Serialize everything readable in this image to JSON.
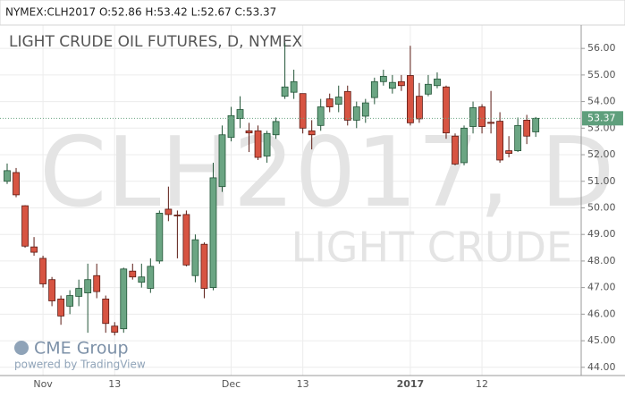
{
  "chart_data": {
    "type": "candlestick",
    "header": "NYMEX:CLH2017 O:52.86 H:53.42 L:52.67 C:53.37",
    "title": "LIGHT CRUDE OIL FUTURES, D, NYMEX",
    "watermark": "CLH2017, D",
    "watermark_subtitle": "LIGHT CRUDE",
    "logo": "CME Group",
    "logo_caption": "powered by TradingView",
    "up_color": "#6ba583",
    "down_color": "#d75442",
    "up_border": "#225437",
    "down_border": "#5b1a13",
    "last_price": 53.37,
    "categories": [
      null,
      null,
      null,
      null,
      "Nov",
      null,
      null,
      null,
      null,
      null,
      null,
      null,
      "13",
      null,
      null,
      null,
      null,
      null,
      null,
      null,
      null,
      null,
      null,
      null,
      null,
      "Dec",
      null,
      null,
      null,
      null,
      null,
      null,
      null,
      "13",
      null,
      null,
      null,
      null,
      null,
      null,
      null,
      null,
      null,
      null,
      null,
      "2017",
      null,
      null,
      null,
      null,
      null,
      null,
      null,
      "12",
      null,
      null,
      null,
      null,
      null,
      null
    ],
    "open": [
      51.0,
      51.33,
      50.08,
      48.53,
      48.1,
      47.3,
      46.57,
      46.3,
      46.67,
      46.8,
      47.45,
      46.57,
      45.55,
      45.45,
      47.62,
      47.2,
      46.97,
      48.0,
      49.95,
      49.73,
      49.75,
      47.45,
      48.63,
      47.0,
      50.8,
      52.65,
      53.36,
      52.9,
      52.9,
      51.95,
      52.75,
      54.2,
      54.35,
      54.3,
      52.9,
      53.1,
      54.1,
      53.9,
      54.38,
      53.3,
      53.45,
      54.15,
      54.75,
      54.5,
      54.75,
      54.98,
      54.2,
      54.28,
      54.6,
      54.55,
      52.7,
      51.7,
      53.06,
      53.8,
      53.22,
      53.26,
      52.15,
      52.15,
      53.3,
      52.86
    ],
    "high": [
      51.67,
      51.5,
      50.1,
      48.9,
      48.2,
      47.4,
      46.7,
      46.9,
      47.3,
      47.9,
      47.9,
      46.7,
      45.7,
      47.75,
      47.9,
      47.9,
      48.1,
      49.9,
      50.8,
      49.9,
      49.9,
      49.0,
      48.7,
      51.7,
      53.1,
      53.8,
      54.2,
      53.2,
      53.1,
      52.9,
      53.4,
      56.2,
      55.2,
      54.3,
      53.3,
      54.1,
      54.3,
      54.6,
      54.6,
      54.0,
      54.1,
      54.9,
      55.2,
      55.0,
      55.0,
      56.1,
      54.7,
      55.0,
      55.1,
      54.6,
      52.8,
      53.1,
      54.0,
      53.9,
      54.4,
      53.6,
      52.7,
      53.4,
      53.5,
      53.42
    ],
    "low": [
      50.9,
      50.4,
      48.5,
      48.2,
      47.0,
      46.3,
      45.6,
      46.0,
      46.3,
      45.3,
      46.6,
      45.3,
      45.2,
      45.3,
      47.3,
      47.0,
      46.8,
      47.9,
      49.5,
      48.1,
      47.8,
      47.2,
      46.6,
      46.9,
      50.6,
      52.5,
      53.0,
      52.1,
      51.8,
      51.7,
      52.6,
      54.1,
      54.1,
      52.8,
      52.2,
      52.9,
      53.6,
      53.6,
      53.1,
      53.0,
      53.2,
      53.9,
      54.6,
      54.3,
      54.4,
      53.1,
      53.2,
      54.2,
      54.5,
      52.6,
      51.6,
      51.6,
      52.8,
      52.8,
      52.8,
      51.7,
      51.9,
      52.1,
      52.4,
      52.67
    ],
    "close": [
      51.4,
      50.49,
      48.56,
      48.33,
      47.14,
      46.5,
      45.93,
      46.7,
      46.97,
      47.3,
      46.85,
      45.65,
      45.32,
      47.7,
      47.4,
      47.4,
      47.8,
      49.8,
      49.75,
      49.7,
      47.85,
      48.8,
      46.97,
      51.13,
      52.75,
      53.47,
      53.7,
      52.82,
      51.9,
      52.8,
      53.25,
      54.55,
      54.75,
      53.0,
      52.75,
      53.8,
      53.8,
      54.17,
      53.3,
      53.8,
      53.95,
      54.75,
      54.95,
      54.72,
      54.6,
      53.2,
      53.35,
      54.65,
      54.85,
      52.82,
      51.65,
      53.0,
      53.77,
      53.06,
      53.18,
      51.8,
      52.05,
      53.1,
      52.7,
      53.37
    ],
    "ylim": [
      43.69,
      56.88
    ],
    "yticks": [
      {
        "value": 44,
        "label": "44.00"
      },
      {
        "value": 45,
        "label": "45.00"
      },
      {
        "value": 46,
        "label": "46.00"
      },
      {
        "value": 47,
        "label": "47.00"
      },
      {
        "value": 48,
        "label": "48.00"
      },
      {
        "value": 49,
        "label": "49.00"
      },
      {
        "value": 50,
        "label": "50.00"
      },
      {
        "value": 51,
        "label": "51.00"
      },
      {
        "value": 52,
        "label": "52.00"
      },
      {
        "value": 53,
        "label": "53.00"
      },
      {
        "value": 54,
        "label": "54.00"
      },
      {
        "value": 55,
        "label": "55.00"
      },
      {
        "value": 56,
        "label": "56.00"
      }
    ],
    "grid": true
  }
}
